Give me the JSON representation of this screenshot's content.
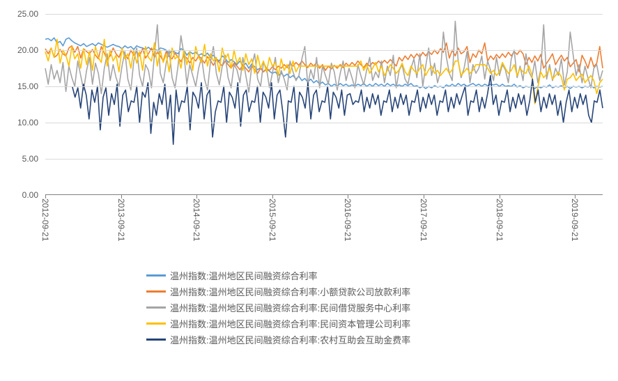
{
  "chart": {
    "type": "line",
    "background_color": "#ffffff",
    "grid_color": "#d9d9d9",
    "axis_color": "#808080",
    "tick_label_color": "#595959",
    "tick_fontsize": 12,
    "legend_fontsize": 13,
    "line_width": 1.6,
    "ylim": [
      0,
      25
    ],
    "ytick_step": 5,
    "y_ticks": [
      "0.00",
      "5.00",
      "10.00",
      "15.00",
      "20.00",
      "25.00"
    ],
    "x_ticks": [
      "2012-09-21",
      "2013-09-21",
      "2014-09-21",
      "2015-09-21",
      "2016-09-21",
      "2017-09-21",
      "2018-09-21",
      "2019-09-21"
    ],
    "x_range": {
      "start": "2012-09-21",
      "end": "2020-02-01",
      "days": 2690
    },
    "series": [
      {
        "id": "s1",
        "label": "温州指数:温州地区民间融资综合利率",
        "color": "#5b9bd5",
        "start_day": 0,
        "values": [
          21.5,
          21.6,
          21.3,
          21.7,
          21.0,
          21.2,
          20.6,
          21.5,
          21.7,
          21.3,
          21.0,
          20.8,
          20.6,
          20.9,
          20.5,
          20.7,
          20.9,
          20.6,
          21.0,
          20.8,
          20.6,
          20.4,
          20.6,
          20.8,
          20.6,
          20.5,
          20.2,
          20.6,
          20.3,
          20.5,
          20.1,
          20.6,
          20.4,
          20.3,
          20.1,
          20.4,
          20.0,
          20.2,
          19.9,
          20.3,
          20.2,
          20.0,
          19.5,
          20.0,
          19.7,
          19.5,
          20.2,
          20.0,
          19.3,
          19.8,
          19.5,
          19.7,
          19.3,
          19.5,
          19.2,
          19.6,
          19.0,
          19.3,
          18.8,
          18.5,
          19.2,
          18.9,
          18.3,
          18.7,
          18.4,
          18.0,
          18.5,
          17.8,
          18.2,
          17.5,
          18.1,
          17.7,
          17.3,
          17.6,
          17.0,
          17.4,
          17.1,
          16.8,
          17.0,
          16.5,
          16.8,
          16.4,
          16.7,
          16.2,
          16.5,
          16.0,
          16.4,
          15.8,
          16.1,
          15.6,
          16.0,
          15.5,
          15.8,
          15.3,
          15.6,
          15.2,
          15.4,
          15.0,
          15.3,
          15.0,
          15.4,
          15.1,
          15.3,
          15.0,
          15.2,
          15.0,
          15.3,
          15.1,
          15.4,
          15.0,
          15.3,
          15.0,
          15.4,
          15.1,
          15.3,
          15.0,
          15.4,
          15.1,
          15.3,
          15.0,
          15.2,
          15.0,
          15.3,
          15.1,
          15.4,
          15.0,
          15.1,
          14.8,
          15.0,
          14.7,
          15.0,
          14.8,
          15.1,
          14.9,
          15.0,
          14.8,
          15.2,
          15.0,
          15.3,
          15.0,
          15.4,
          15.1,
          15.3,
          15.0,
          15.2,
          15.4,
          15.1,
          15.3,
          15.0,
          15.3,
          15.1,
          15.3,
          15.2,
          15.3,
          15.0,
          15.3,
          15.0,
          15.1,
          15.0,
          15.3,
          14.9,
          15.1,
          14.8,
          15.0,
          14.9,
          15.0,
          14.7,
          15.0,
          14.8,
          15.0,
          14.9,
          15.2,
          14.8,
          15.0,
          14.9,
          15.1,
          14.8,
          15.0,
          14.7,
          15.0,
          14.9,
          15.0,
          14.8,
          15.0,
          14.9,
          15.1,
          14.8,
          15.0,
          14.9,
          15.0
        ]
      },
      {
        "id": "s2",
        "label": "温州指数:温州地区民间融资综合利率:小额贷款公司放款利率",
        "color": "#ed7d31",
        "start_day": 0,
        "values": [
          20.2,
          19.5,
          20.3,
          19.0,
          19.3,
          20.1,
          19.5,
          19.2,
          20.3,
          20.6,
          19.7,
          20.5,
          18.9,
          20.2,
          19.8,
          19.5,
          20.1,
          19.3,
          18.8,
          20.5,
          19.6,
          18.7,
          19.2,
          20.3,
          19.5,
          19.0,
          20.1,
          19.4,
          18.8,
          20.0,
          19.3,
          19.8,
          19.2,
          20.2,
          18.9,
          19.5,
          20.3,
          19.0,
          19.7,
          19.2,
          18.5,
          19.8,
          19.1,
          18.8,
          19.6,
          19.0,
          18.4,
          19.3,
          18.9,
          18.2,
          19.0,
          18.5,
          19.2,
          18.8,
          18.2,
          19.1,
          18.6,
          17.9,
          18.7,
          18.3,
          17.8,
          18.5,
          18.0,
          17.5,
          18.2,
          17.8,
          17.3,
          18.0,
          17.5,
          17.0,
          17.8,
          17.3,
          16.8,
          17.5,
          17.0,
          17.5,
          17.2,
          17.7,
          17.3,
          17.8,
          17.5,
          18.0,
          17.6,
          18.2,
          17.8,
          18.3,
          17.9,
          18.5,
          18.0,
          17.6,
          18.2,
          17.8,
          18.3,
          17.5,
          18.0,
          17.2,
          17.8,
          17.4,
          17.9,
          17.5,
          18.0,
          17.6,
          18.2,
          17.8,
          18.3,
          17.9,
          18.5,
          18.0,
          17.6,
          18.2,
          17.8,
          18.3,
          18.0,
          18.5,
          18.1,
          18.6,
          18.2,
          18.7,
          18.3,
          17.8,
          19.0,
          18.5,
          19.2,
          18.7,
          19.4,
          18.9,
          19.5,
          19.0,
          19.7,
          19.2,
          19.8,
          19.4,
          20.0,
          19.5,
          20.2,
          19.7,
          21.0,
          18.9,
          20.0,
          19.2,
          20.3,
          19.5,
          19.8,
          20.5,
          18.3,
          19.5,
          19.0,
          20.0,
          19.5,
          21.0,
          18.5,
          19.2,
          18.7,
          19.4,
          18.9,
          19.5,
          19.0,
          19.7,
          19.2,
          19.8,
          19.4,
          20.0,
          19.5,
          18.0,
          19.0,
          18.3,
          19.2,
          18.5,
          19.4,
          17.5,
          18.2,
          18.8,
          19.5,
          18.0,
          18.7,
          19.3,
          18.5,
          19.0,
          17.7,
          18.2,
          18.7,
          17.0,
          19.3,
          18.5,
          17.5,
          19.0,
          17.7,
          18.2,
          20.5,
          17.5
        ]
      },
      {
        "id": "s3",
        "label": "温州指数:温州地区民间融资综合利率:民间借贷服务中心利率",
        "color": "#a5a5a5",
        "start_day": 0,
        "values": [
          17.5,
          15.3,
          18.0,
          16.0,
          17.2,
          15.5,
          18.3,
          14.3,
          17.8,
          16.2,
          15.0,
          18.5,
          16.5,
          14.5,
          17.2,
          19.0,
          15.3,
          18.2,
          16.8,
          14.0,
          17.5,
          19.5,
          15.8,
          18.0,
          16.2,
          15.0,
          17.8,
          19.8,
          16.0,
          14.5,
          18.5,
          20.3,
          16.5,
          15.0,
          18.0,
          17.2,
          14.8,
          19.3,
          23.5,
          16.8,
          15.5,
          18.2,
          20.0,
          16.2,
          14.8,
          17.8,
          22.0,
          19.5,
          15.3,
          18.0,
          16.5,
          15.0,
          17.5,
          19.0,
          16.0,
          14.5,
          18.3,
          20.5,
          16.8,
          15.2,
          17.8,
          19.3,
          16.2,
          14.8,
          18.0,
          17.3,
          15.5,
          19.0,
          16.5,
          14.2,
          17.8,
          19.5,
          16.0,
          15.0,
          18.3,
          17.5,
          14.8,
          16.8,
          19.0,
          15.5,
          17.2,
          16.0,
          14.5,
          18.5,
          17.0,
          15.8,
          16.5,
          18.8,
          20.5,
          15.2,
          17.3,
          16.0,
          19.0,
          14.8,
          17.8,
          16.5,
          15.3,
          18.2,
          17.0,
          14.5,
          16.8,
          18.5,
          15.8,
          17.5,
          16.2,
          14.8,
          18.0,
          16.5,
          15.2,
          17.3,
          19.0,
          15.8,
          17.0,
          16.2,
          18.5,
          15.5,
          17.8,
          16.5,
          19.3,
          14.8,
          17.2,
          18.0,
          16.0,
          15.3,
          17.5,
          18.8,
          16.2,
          19.5,
          15.0,
          17.8,
          20.3,
          16.5,
          18.2,
          15.5,
          17.0,
          22.5,
          19.0,
          16.8,
          15.8,
          24.0,
          18.5,
          16.2,
          17.5,
          19.8,
          15.5,
          18.0,
          16.8,
          17.5,
          19.2,
          16.0,
          18.5,
          17.2,
          15.8,
          19.0,
          16.5,
          18.0,
          17.3,
          15.5,
          18.8,
          20.0,
          16.2,
          17.8,
          15.8,
          19.5,
          17.0,
          16.2,
          18.5,
          15.5,
          17.3,
          23.5,
          16.0,
          18.0,
          15.8,
          17.5,
          16.5,
          18.8,
          15.2,
          17.0,
          22.5,
          19.3,
          16.5,
          18.0,
          15.5,
          17.8,
          16.2,
          14.8,
          17.5,
          18.0,
          15.8,
          17.2
        ]
      },
      {
        "id": "s4",
        "label": "温州指数:温州地区民间融资综合利率:民间资本管理公司利率",
        "color": "#ffc000",
        "start_day": 0,
        "values": [
          19.8,
          18.5,
          20.3,
          19.0,
          21.5,
          18.2,
          20.0,
          19.3,
          17.8,
          20.5,
          18.8,
          19.5,
          17.5,
          20.2,
          18.0,
          19.8,
          17.2,
          20.5,
          19.0,
          18.3,
          21.5,
          17.8,
          20.0,
          18.5,
          19.3,
          17.0,
          20.3,
          18.8,
          19.5,
          17.5,
          20.0,
          18.2,
          19.8,
          17.2,
          20.5,
          19.0,
          18.5,
          21.0,
          17.8,
          20.0,
          18.3,
          19.5,
          17.0,
          20.3,
          18.8,
          19.2,
          17.5,
          20.0,
          18.0,
          19.8,
          17.2,
          20.5,
          19.0,
          18.3,
          20.8,
          17.8,
          19.5,
          18.5,
          19.0,
          17.0,
          20.3,
          18.8,
          19.5,
          17.5,
          20.0,
          18.2,
          19.0,
          17.2,
          19.5,
          18.0,
          18.8,
          16.8,
          19.3,
          17.5,
          18.5,
          17.0,
          19.0,
          17.8,
          18.3,
          16.5,
          18.8,
          17.2,
          18.0,
          16.8,
          18.5,
          17.0,
          17.8,
          17.8,
          17.8,
          17.8,
          17.8,
          17.8,
          17.8,
          17.8,
          17.8,
          17.8,
          17.8,
          17.8,
          17.8,
          17.8,
          17.8,
          17.8,
          17.8,
          17.8,
          17.8,
          17.8,
          17.8,
          18.5,
          17.2,
          18.0,
          16.8,
          17.5,
          18.3,
          17.0,
          17.8,
          16.5,
          17.2,
          18.0,
          17.5,
          16.8,
          17.3,
          18.2,
          17.0,
          16.5,
          17.8,
          17.2,
          16.8,
          17.5,
          18.0,
          16.5,
          17.3,
          17.8,
          16.8,
          17.2,
          16.5,
          17.0,
          17.5,
          16.8,
          17.3,
          18.5,
          18.5,
          16.5,
          17.0,
          17.5,
          16.8,
          17.2,
          18.0,
          18.0,
          18.0,
          18.0,
          17.5,
          16.8,
          17.2,
          16.5,
          17.0,
          18.3,
          17.5,
          16.8,
          17.2,
          18.0,
          16.5,
          17.5,
          17.0,
          16.8,
          17.8,
          16.6,
          12.6,
          14.8,
          17.0,
          16.2,
          16.7,
          17.5,
          16.0,
          16.5,
          17.0,
          16.3,
          14.5,
          16.0,
          16.2,
          16.8,
          15.8,
          16.3,
          16.7,
          15.5,
          16.0,
          16.5,
          15.8,
          14.0,
          15.5,
          16.0
        ]
      },
      {
        "id": "s5",
        "label": "温州指数:温州地区民间融资综合利率:农村互助会互助金费率",
        "color": "#264478",
        "start_day": 130,
        "values": [
          15.0,
          13.5,
          14.8,
          12.0,
          15.3,
          13.8,
          10.5,
          14.5,
          12.8,
          15.0,
          9.0,
          13.5,
          14.8,
          11.0,
          14.0,
          12.5,
          15.3,
          9.5,
          13.8,
          14.5,
          11.5,
          13.0,
          12.8,
          15.0,
          10.0,
          14.2,
          13.5,
          15.5,
          8.5,
          12.8,
          11.0,
          14.0,
          12.5,
          15.3,
          10.5,
          13.8,
          7.0,
          14.5,
          11.5,
          13.0,
          12.8,
          15.0,
          9.0,
          14.2,
          13.5,
          12.0,
          15.5,
          10.5,
          13.8,
          14.5,
          8.0,
          11.5,
          13.0,
          12.8,
          15.0,
          10.0,
          14.2,
          13.5,
          12.0,
          15.5,
          9.5,
          13.8,
          14.5,
          11.5,
          13.0,
          12.8,
          15.0,
          10.0,
          14.2,
          13.5,
          12.0,
          15.5,
          10.5,
          13.8,
          14.5,
          11.5,
          8.0,
          13.0,
          12.8,
          15.0,
          10.0,
          14.2,
          13.5,
          12.0,
          15.5,
          10.5,
          13.8,
          14.5,
          11.5,
          13.0,
          12.8,
          15.0,
          10.5,
          14.2,
          13.5,
          12.0,
          14.5,
          11.0,
          13.8,
          14.0,
          12.5,
          13.0,
          12.8,
          14.5,
          11.5,
          13.5,
          12.0,
          14.0,
          12.5,
          13.8,
          11.0,
          13.0,
          12.8,
          14.5,
          11.5,
          13.5,
          12.0,
          14.0,
          12.5,
          13.8,
          11.0,
          13.0,
          12.8,
          14.5,
          11.5,
          13.5,
          12.0,
          14.0,
          12.5,
          13.8,
          11.0,
          13.0,
          12.8,
          14.5,
          11.5,
          13.5,
          12.0,
          14.0,
          12.5,
          13.8,
          15.0,
          11.0,
          13.0,
          12.8,
          14.5,
          11.5,
          13.5,
          12.0,
          14.0,
          16.5,
          12.5,
          13.8,
          11.0,
          13.0,
          12.8,
          14.5,
          11.5,
          13.5,
          12.0,
          14.0,
          12.5,
          13.8,
          11.0,
          13.0,
          16.0,
          12.8,
          14.5,
          11.5,
          13.5,
          12.0,
          14.0,
          12.5,
          13.8,
          11.0,
          13.0,
          10.0,
          12.8,
          14.5,
          11.5,
          13.5,
          12.0,
          14.0,
          12.5,
          13.8,
          11.0,
          10.0,
          13.0,
          12.8,
          14.5,
          12.0
        ]
      }
    ]
  }
}
